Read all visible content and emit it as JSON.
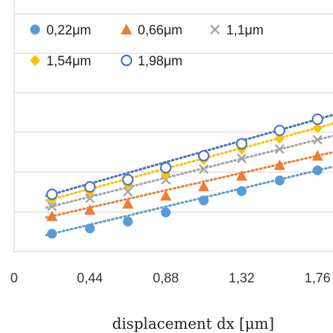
{
  "chart_data": {
    "type": "scatter",
    "xlabel": "displacement dx [μm]",
    "ylabel": "",
    "title": "",
    "xlim": [
      0,
      1.93
    ],
    "ylim": [
      0,
      9.5
    ],
    "x_ticks": [
      "0",
      "0,44",
      "0,88",
      "1,32",
      "1,76"
    ],
    "x_tick_values": [
      0,
      0.44,
      0.88,
      1.32,
      1.76
    ],
    "grid": true,
    "legend_position": "top-left",
    "series": [
      {
        "name": "0,22μm",
        "marker": "circle",
        "color": "#5B9BD5",
        "x": [
          0.22,
          0.44,
          0.66,
          0.88,
          1.1,
          1.32,
          1.54,
          1.76
        ],
        "y": [
          0.72,
          0.92,
          1.18,
          1.52,
          1.97,
          2.32,
          2.72,
          3.1
        ]
      },
      {
        "name": "0,66μm",
        "marker": "triangle",
        "color": "#ED7D31",
        "x": [
          0.22,
          0.44,
          0.66,
          0.88,
          1.1,
          1.32,
          1.54,
          1.76
        ],
        "y": [
          1.38,
          1.62,
          1.85,
          2.15,
          2.5,
          2.9,
          3.3,
          3.65
        ]
      },
      {
        "name": "1,1μm",
        "marker": "x",
        "color": "#A5A5A5",
        "x": [
          0.22,
          0.44,
          0.66,
          0.88,
          1.1,
          1.32,
          1.54,
          1.76
        ],
        "y": [
          1.75,
          2.05,
          2.3,
          2.75,
          3.15,
          3.55,
          3.9,
          4.25
        ]
      },
      {
        "name": "1,54μm",
        "marker": "diamond",
        "color": "#FFC000",
        "x": [
          0.22,
          0.44,
          0.66,
          0.88,
          1.1,
          1.32,
          1.54,
          1.76
        ],
        "y": [
          2.02,
          2.3,
          2.58,
          2.95,
          3.5,
          3.9,
          4.3,
          4.7
        ]
      },
      {
        "name": "1,98μm",
        "marker": "open-circle",
        "color": "#4472C4",
        "x": [
          0.22,
          0.44,
          0.66,
          0.88,
          1.1,
          1.32,
          1.54,
          1.76
        ],
        "y": [
          2.2,
          2.48,
          2.75,
          3.2,
          3.65,
          4.1,
          4.6,
          5.02
        ]
      }
    ]
  }
}
